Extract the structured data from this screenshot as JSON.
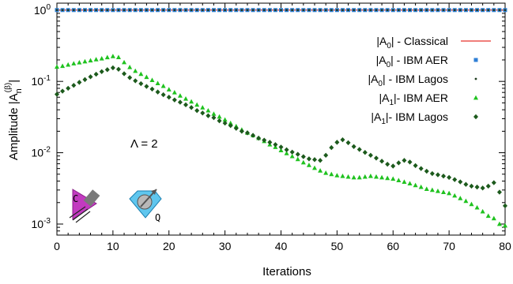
{
  "chart_data": {
    "type": "scatter",
    "title": "",
    "xlabel": "Iterations",
    "ylabel": "Amplitude |A_n^(β)|",
    "xlim": [
      0,
      80
    ],
    "ylim": [
      0.0007,
      1.25
    ],
    "yscale": "log",
    "grid": false,
    "legend_position": "top-right",
    "xticks": [
      0,
      10,
      20,
      30,
      40,
      50,
      60,
      70,
      80
    ],
    "yticks": [
      {
        "value": 1,
        "base": "10",
        "exp": "0"
      },
      {
        "value": 0.1,
        "base": "10",
        "exp": "-1"
      },
      {
        "value": 0.01,
        "base": "10",
        "exp": "-2"
      },
      {
        "value": 0.001,
        "base": "10",
        "exp": "-3"
      }
    ],
    "annotation": "Λ = 2",
    "icons": [
      {
        "name": "classical-icon",
        "letter": "C"
      },
      {
        "name": "quantum-icon",
        "letter": "Q"
      }
    ],
    "series": [
      {
        "name": "|A0| - Classical",
        "legend": {
          "pre": "|A",
          "sub": "0",
          "post": "| - Classical"
        },
        "marker": "line",
        "color": "#e8302a",
        "x": [
          0,
          80
        ],
        "y": [
          1,
          1
        ]
      },
      {
        "name": "|A0| - IBM AER",
        "legend": {
          "pre": "|A",
          "sub": "0",
          "post": "| - IBM AER"
        },
        "marker": "square",
        "color": "#2f7fd6",
        "x": [
          0,
          1,
          2,
          3,
          4,
          5,
          6,
          7,
          8,
          9,
          10,
          11,
          12,
          13,
          14,
          15,
          16,
          17,
          18,
          19,
          20,
          21,
          22,
          23,
          24,
          25,
          26,
          27,
          28,
          29,
          30,
          31,
          32,
          33,
          34,
          35,
          36,
          37,
          38,
          39,
          40,
          41,
          42,
          43,
          44,
          45,
          46,
          47,
          48,
          49,
          50,
          51,
          52,
          53,
          54,
          55,
          56,
          57,
          58,
          59,
          60,
          61,
          62,
          63,
          64,
          65,
          66,
          67,
          68,
          69,
          70,
          71,
          72,
          73,
          74,
          75,
          76,
          77,
          78,
          79,
          80
        ],
        "y": [
          1,
          1,
          1,
          1,
          1,
          1,
          1,
          1,
          1,
          1,
          1,
          1,
          1,
          1,
          1,
          1,
          1,
          1,
          1,
          1,
          1,
          1,
          1,
          1,
          1,
          1,
          1,
          1,
          1,
          1,
          1,
          1,
          1,
          1,
          1,
          1,
          1,
          1,
          1,
          1,
          1,
          1,
          1,
          1,
          1,
          1,
          1,
          1,
          1,
          1,
          1,
          1,
          1,
          1,
          1,
          1,
          1,
          1,
          1,
          1,
          1,
          1,
          1,
          1,
          1,
          1,
          1,
          1,
          1,
          1,
          1,
          1,
          1,
          1,
          1,
          1,
          1,
          1,
          1,
          1,
          1
        ]
      },
      {
        "name": "|A0| - IBM Lagos",
        "legend": {
          "pre": "|A",
          "sub": "0",
          "post": "| - IBM Lagos"
        },
        "marker": "dot",
        "color": "#1f3d1f",
        "x": [
          0,
          1,
          2,
          3,
          4,
          5,
          6,
          7,
          8,
          9,
          10,
          11,
          12,
          13,
          14,
          15,
          16,
          17,
          18,
          19,
          20,
          21,
          22,
          23,
          24,
          25,
          26,
          27,
          28,
          29,
          30,
          31,
          32,
          33,
          34,
          35,
          36,
          37,
          38,
          39,
          40,
          41,
          42,
          43,
          44,
          45,
          46,
          47,
          48,
          49,
          50,
          51,
          52,
          53,
          54,
          55,
          56,
          57,
          58,
          59,
          60,
          61,
          62,
          63,
          64,
          65,
          66,
          67,
          68,
          69,
          70,
          71,
          72,
          73,
          74,
          75,
          76,
          77,
          78,
          79,
          80
        ],
        "y": [
          1,
          1,
          1,
          1,
          1,
          1,
          1,
          1,
          1,
          1,
          1,
          1,
          1,
          1,
          1,
          1,
          1,
          1,
          1,
          1,
          1,
          1,
          1,
          1,
          1,
          1,
          1,
          1,
          1,
          1,
          1,
          1,
          1,
          1,
          1,
          1,
          1,
          1,
          1,
          1,
          1,
          1,
          1,
          1,
          1,
          1,
          1,
          1,
          1,
          1,
          1,
          1,
          1,
          1,
          1,
          1,
          1,
          1,
          1,
          1,
          1,
          1,
          1,
          1,
          1,
          1,
          1,
          1,
          1,
          1,
          1,
          1,
          1,
          1,
          1,
          1,
          1,
          1,
          1,
          1,
          1
        ]
      },
      {
        "name": "|A1|- IBM AER",
        "legend": {
          "pre": "|A",
          "sub": "1",
          "post": "|- IBM AER"
        },
        "marker": "triangle",
        "color": "#1fc21f",
        "x": [
          0,
          1,
          2,
          3,
          4,
          5,
          6,
          7,
          8,
          9,
          10,
          11,
          12,
          13,
          14,
          15,
          16,
          17,
          18,
          19,
          20,
          21,
          22,
          23,
          24,
          25,
          26,
          27,
          28,
          29,
          30,
          31,
          32,
          33,
          34,
          35,
          36,
          37,
          38,
          39,
          40,
          41,
          42,
          43,
          44,
          45,
          46,
          47,
          48,
          49,
          50,
          51,
          52,
          53,
          54,
          55,
          56,
          57,
          58,
          59,
          60,
          61,
          62,
          63,
          64,
          65,
          66,
          67,
          68,
          69,
          70,
          71,
          72,
          73,
          74,
          75,
          76,
          77,
          78,
          79,
          80
        ],
        "y": [
          0.16,
          0.164,
          0.171,
          0.178,
          0.184,
          0.19,
          0.196,
          0.203,
          0.209,
          0.217,
          0.225,
          0.218,
          0.185,
          0.158,
          0.14,
          0.127,
          0.115,
          0.104,
          0.094,
          0.086,
          0.077,
          0.07,
          0.063,
          0.057,
          0.052,
          0.047,
          0.043,
          0.039,
          0.035,
          0.032,
          0.029,
          0.026,
          0.0235,
          0.021,
          0.019,
          0.0175,
          0.016,
          0.0145,
          0.013,
          0.012,
          0.0108,
          0.0098,
          0.0089,
          0.0081,
          0.0073,
          0.0067,
          0.0061,
          0.0056,
          0.0052,
          0.005,
          0.0048,
          0.0047,
          0.0046,
          0.0045,
          0.0045,
          0.0046,
          0.0047,
          0.0046,
          0.0045,
          0.0044,
          0.0043,
          0.0041,
          0.0039,
          0.0037,
          0.0035,
          0.0033,
          0.0031,
          0.003,
          0.0029,
          0.0028,
          0.0027,
          0.0025,
          0.0023,
          0.0021,
          0.0019,
          0.0017,
          0.0015,
          0.0013,
          0.0012,
          0.001,
          0.00095
        ]
      },
      {
        "name": "|A1|- IBM Lagos",
        "legend": {
          "pre": "|A",
          "sub": "1",
          "post": "|- IBM Lagos"
        },
        "marker": "diamond",
        "color": "#1c5a1c",
        "x": [
          0,
          1,
          2,
          3,
          4,
          5,
          6,
          7,
          8,
          9,
          10,
          11,
          12,
          13,
          14,
          15,
          16,
          17,
          18,
          19,
          20,
          21,
          22,
          23,
          24,
          25,
          26,
          27,
          28,
          29,
          30,
          31,
          32,
          33,
          34,
          35,
          36,
          37,
          38,
          39,
          40,
          41,
          42,
          43,
          44,
          45,
          46,
          47,
          48,
          49,
          50,
          51,
          52,
          53,
          54,
          55,
          56,
          57,
          58,
          59,
          60,
          61,
          62,
          63,
          64,
          65,
          66,
          67,
          68,
          69,
          70,
          71,
          72,
          73,
          74,
          75,
          76,
          77,
          78,
          79,
          80
        ],
        "y": [
          0.066,
          0.073,
          0.08,
          0.088,
          0.097,
          0.106,
          0.116,
          0.126,
          0.137,
          0.146,
          0.155,
          0.148,
          0.128,
          0.113,
          0.102,
          0.093,
          0.085,
          0.078,
          0.071,
          0.065,
          0.06,
          0.055,
          0.051,
          0.047,
          0.043,
          0.039,
          0.036,
          0.033,
          0.031,
          0.028,
          0.026,
          0.024,
          0.022,
          0.02,
          0.019,
          0.0175,
          0.016,
          0.015,
          0.014,
          0.013,
          0.012,
          0.011,
          0.0102,
          0.0095,
          0.0088,
          0.0082,
          0.008,
          0.0078,
          0.0092,
          0.0118,
          0.014,
          0.0152,
          0.0138,
          0.0122,
          0.0111,
          0.0101,
          0.0092,
          0.0084,
          0.0076,
          0.0069,
          0.0065,
          0.0072,
          0.0078,
          0.0074,
          0.0066,
          0.006,
          0.0055,
          0.0051,
          0.0049,
          0.0047,
          0.0045,
          0.0042,
          0.0039,
          0.0036,
          0.0034,
          0.0033,
          0.0032,
          0.0034,
          0.0038,
          0.0028,
          0.0018
        ]
      }
    ]
  }
}
